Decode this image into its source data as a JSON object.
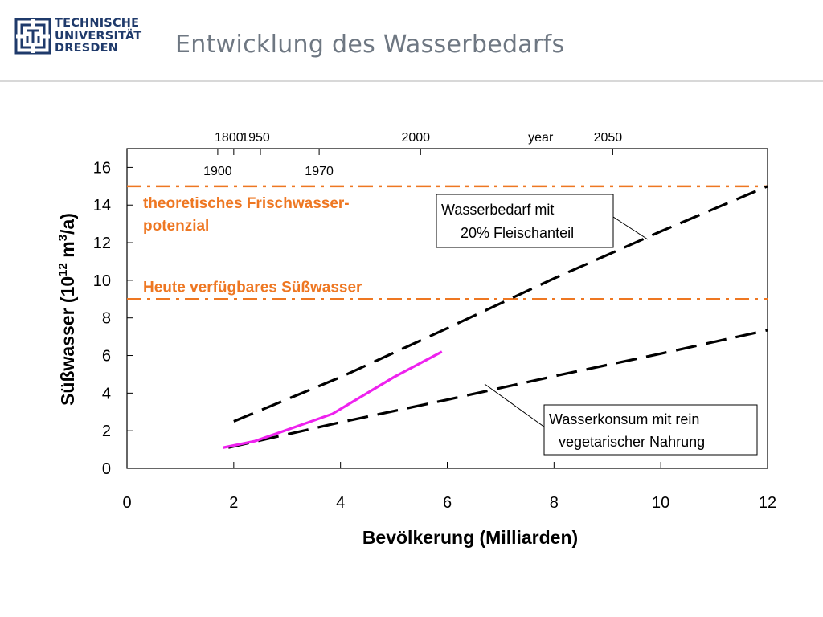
{
  "header": {
    "logo_lines": [
      "TECHNISCHE",
      "UNIVERSITÄT",
      "DRESDEN"
    ],
    "title": "Entwicklung des Wasserbedarfs"
  },
  "chart_data": {
    "type": "line",
    "xlabel": "Bevölkerung (Milliarden)",
    "ylabel": {
      "base": "Süßwasser (10",
      "sup1": "12",
      "mid": " m",
      "sup2": "3",
      "end": "/a)"
    },
    "xlim": [
      0,
      12
    ],
    "ylim": [
      0,
      17
    ],
    "x_ticks": [
      0,
      2,
      4,
      6,
      8,
      10,
      12
    ],
    "y_ticks": [
      0,
      2,
      4,
      6,
      8,
      10,
      12,
      14,
      16
    ],
    "top_axis_label": "year",
    "top_ticks_upper": [
      {
        "x": 2.0,
        "label": "1800"
      },
      {
        "x": 2.5,
        "label": "1950"
      },
      {
        "x": 5.5,
        "label": "2000"
      },
      {
        "x": 9.1,
        "label": "2050"
      }
    ],
    "top_ticks_lower": [
      {
        "x": 1.7,
        "label": "1900"
      },
      {
        "x": 3.6,
        "label": "1970"
      }
    ],
    "series": [
      {
        "name": "Wasserbedarf mit 20% Fleischanteil",
        "style": "dashed",
        "color": "#000000",
        "x": [
          2.0,
          4.0,
          6.0,
          8.0,
          10.0,
          12.0
        ],
        "y": [
          2.5,
          4.85,
          7.45,
          10.1,
          12.6,
          15.0
        ]
      },
      {
        "name": "Wasserkonsum mit rein vegetarischer Nahrung",
        "style": "dashed",
        "color": "#000000",
        "x": [
          1.9,
          4.0,
          6.0,
          8.0,
          10.0,
          12.0
        ],
        "y": [
          1.1,
          2.45,
          3.65,
          4.9,
          6.1,
          7.35
        ]
      },
      {
        "name": "",
        "style": "solid",
        "color": "#ee22ee",
        "x": [
          1.8,
          2.4,
          3.85,
          5.0,
          5.9
        ],
        "y": [
          1.1,
          1.45,
          2.9,
          4.85,
          6.2
        ]
      }
    ],
    "reference_lines": [
      {
        "y": 15,
        "label": "theoretisches Frischwasser-\npotenzial",
        "color": "#ee7722"
      },
      {
        "y": 9,
        "label": "Heute verfügbares Süßwasser",
        "color": "#ee7722"
      }
    ],
    "annotations": [
      {
        "lines": [
          "Wasserbedarf mit",
          "20% Fleischanteil"
        ]
      },
      {
        "lines": [
          "Wasserkonsum mit rein",
          "vegetarischer Nahrung"
        ]
      }
    ],
    "grid": false
  }
}
